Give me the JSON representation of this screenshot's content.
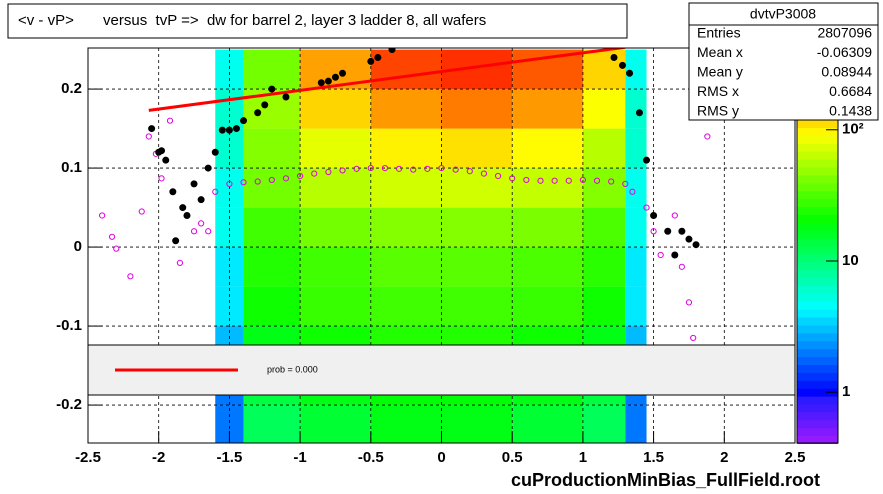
{
  "chart_data": {
    "type": "heatmap",
    "title": "<v - vP>       versus  tvP =>  dw for barrel 2, layer 3 ladder 8, all wafers",
    "source": "cuProductionMinBias_FullField.root",
    "xlim": [
      -2.5,
      2.5
    ],
    "ylim": [
      -0.248,
      0.252
    ],
    "xticks": [
      -2.5,
      -2,
      -1.5,
      -1,
      -0.5,
      0,
      0.5,
      1,
      1.5,
      2,
      2.5
    ],
    "yticks": [
      -0.2,
      -0.1,
      0,
      0.1,
      0.2
    ],
    "grid": true,
    "zscale": "log",
    "zlim": [
      0.41,
      420
    ],
    "zticks": [
      1,
      10,
      {
        "value": 100,
        "label": "10²"
      }
    ],
    "x_edges": [
      -2.5,
      -1.6,
      -1.4,
      -1.0,
      -0.5,
      0,
      0.5,
      1.0,
      1.3,
      1.45,
      2.5
    ],
    "y_edges": [
      -0.25,
      -0.2,
      -0.15,
      -0.1,
      -0.05,
      0,
      0.05,
      0.1,
      0.15,
      0.2,
      0.25
    ],
    "counts": [
      [
        0,
        0,
        0,
        0,
        0,
        0,
        0,
        0,
        0,
        0
      ],
      [
        2,
        2,
        3,
        4,
        4,
        5,
        5,
        6,
        6,
        5
      ],
      [
        12,
        14,
        18,
        22,
        25,
        30,
        40,
        45,
        50,
        40
      ],
      [
        15,
        18,
        22,
        28,
        30,
        40,
        60,
        80,
        120,
        160
      ],
      [
        18,
        20,
        25,
        30,
        35,
        45,
        70,
        100,
        170,
        280
      ],
      [
        18,
        20,
        25,
        30,
        35,
        45,
        70,
        110,
        200,
        320
      ],
      [
        15,
        18,
        22,
        28,
        32,
        42,
        65,
        95,
        170,
        250
      ],
      [
        12,
        14,
        18,
        22,
        26,
        32,
        45,
        60,
        90,
        120
      ],
      [
        2,
        2,
        3,
        4,
        4,
        5,
        5,
        6,
        6,
        5
      ],
      [
        0,
        0,
        0,
        0,
        0,
        0,
        0,
        0,
        0,
        0
      ]
    ],
    "series": [
      {
        "marker": "open-circle",
        "color": "#e000e0",
        "x": [
          -2.4,
          -2.33,
          -2.3,
          -2.2,
          -2.12,
          -2.07,
          -2.02,
          -1.98,
          -1.92,
          -1.85,
          -1.8,
          -1.75,
          -1.7,
          -1.65,
          -1.6,
          -1.5,
          -1.4,
          -1.3,
          -1.2,
          -1.1,
          -1.0,
          -0.9,
          -0.8,
          -0.7,
          -0.6,
          -0.5,
          -0.4,
          -0.3,
          -0.2,
          -0.1,
          0,
          0.1,
          0.2,
          0.3,
          0.4,
          0.5,
          0.6,
          0.7,
          0.8,
          0.9,
          1.0,
          1.1,
          1.2,
          1.3,
          1.35,
          1.45,
          1.5,
          1.55,
          1.6,
          1.65,
          1.7,
          1.75,
          1.78,
          1.88
        ],
        "values": [
          0.04,
          0.013,
          -0.002,
          -0.037,
          0.045,
          0.14,
          0.118,
          0.087,
          0.16,
          -0.02,
          0.04,
          0.02,
          0.03,
          0.02,
          0.07,
          0.08,
          0.082,
          0.083,
          0.085,
          0.087,
          0.09,
          0.093,
          0.095,
          0.097,
          0.099,
          0.1,
          0.1,
          0.099,
          0.098,
          0.099,
          0.1,
          0.098,
          0.096,
          0.093,
          0.09,
          0.087,
          0.085,
          0.084,
          0.084,
          0.084,
          0.085,
          0.084,
          0.083,
          0.08,
          0.07,
          0.05,
          0.02,
          -0.01,
          0.02,
          0.04,
          -0.025,
          -0.07,
          -0.115,
          0.14
        ]
      },
      {
        "marker": "filled-circle",
        "color": "#000000",
        "x": [
          -2.05,
          -2.0,
          -1.98,
          -1.95,
          -1.9,
          -1.88,
          -1.83,
          -1.8,
          -1.75,
          -1.7,
          -1.65,
          -1.6,
          -1.55,
          -1.5,
          -1.45,
          -1.4,
          -1.3,
          -1.25,
          -1.2,
          -1.1,
          -0.85,
          -0.8,
          -0.75,
          -0.7,
          -0.5,
          -0.45,
          -0.35,
          1.22,
          1.28,
          1.33,
          1.4,
          1.45,
          1.5,
          1.6,
          1.65,
          1.7,
          1.75,
          1.8
        ],
        "values": [
          0.15,
          0.12,
          0.122,
          0.11,
          0.07,
          0.008,
          0.05,
          0.04,
          0.08,
          0.06,
          0.1,
          0.12,
          0.148,
          0.148,
          0.15,
          0.16,
          0.17,
          0.18,
          0.2,
          0.19,
          0.208,
          0.21,
          0.215,
          0.22,
          0.235,
          0.24,
          0.25,
          0.24,
          0.23,
          0.22,
          0.17,
          0.11,
          0.04,
          0.02,
          -0.01,
          0.02,
          0.01,
          0.003
        ]
      }
    ],
    "fit": {
      "color": "#ff0000",
      "x": [
        -2.07,
        1.3
      ],
      "values": [
        0.173,
        0.253
      ],
      "label": "prob = 0.000"
    },
    "stats": {
      "title": "dvtvP3008",
      "rows": [
        [
          "Entries",
          2807096
        ],
        [
          "Mean x",
          -0.06309
        ],
        [
          "Mean y",
          0.08944
        ],
        [
          "RMS x",
          0.6684
        ],
        [
          "RMS y",
          0.1438
        ]
      ]
    }
  }
}
